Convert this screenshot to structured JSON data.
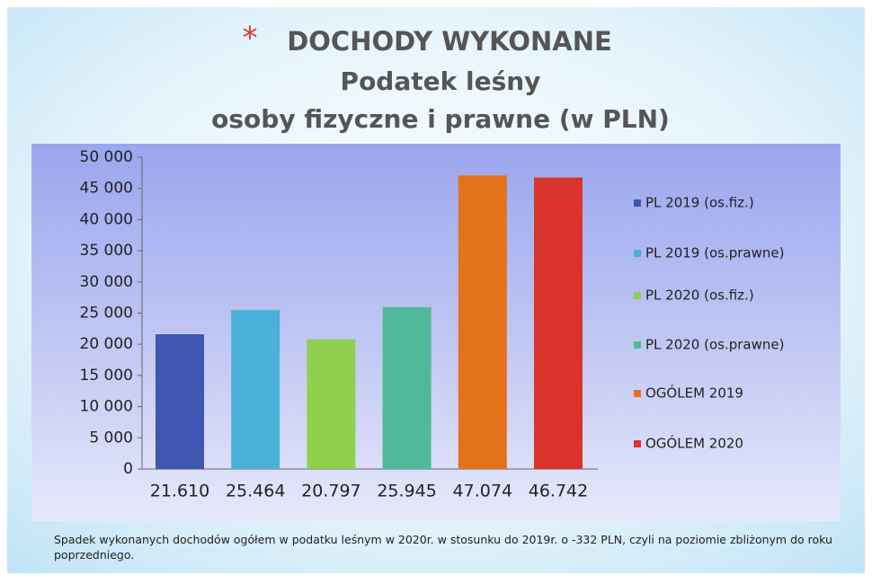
{
  "chart_data": {
    "type": "bar",
    "title_marker": "*",
    "title": "DOCHODY WYKONANE",
    "subtitle": "Podatek leśny",
    "subtitle2": "osoby fizyczne i prawne (w PLN)",
    "categories": [
      "PL 2019 (os.fiz.)",
      "PL 2019 (os.prawne)",
      "PL 2020 (os.fiz.)",
      "PL 2020 (os.prawne)",
      "OGÓLEM 2019",
      "OGÓLEM 2020"
    ],
    "values": [
      21610,
      25464,
      20797,
      25945,
      47074,
      46742
    ],
    "value_labels": [
      "21.610",
      "25.464",
      "20.797",
      "25.945",
      "47.074",
      "46.742"
    ],
    "colors": [
      "#3f57b0",
      "#4ab0d9",
      "#8fd14f",
      "#4fb99a",
      "#e3721c",
      "#d9342b"
    ],
    "ylim": [
      0,
      50000
    ],
    "yticks": [
      0,
      {
        "value": 5000,
        "label": "5 000"
      },
      {
        "value": 10000,
        "label": "10 000"
      },
      {
        "value": 15000,
        "label": "15 000"
      },
      {
        "value": 20000,
        "label": "20 000"
      },
      {
        "value": 25000,
        "label": "25 000"
      },
      {
        "value": 30000,
        "label": "30 000"
      },
      {
        "value": 35000,
        "label": "35 000"
      },
      {
        "value": 40000,
        "label": "40 000"
      },
      {
        "value": 45000,
        "label": "45 000"
      },
      {
        "value": 50000,
        "label": "50 000"
      }
    ],
    "legend": "right",
    "note": "Spadek wykonanych dochodów ogółem w podatku leśnym w 2020r. w stosunku do 2019r. o -332 PLN, czyli na poziomie zbliżonym do roku poprzedniego."
  }
}
